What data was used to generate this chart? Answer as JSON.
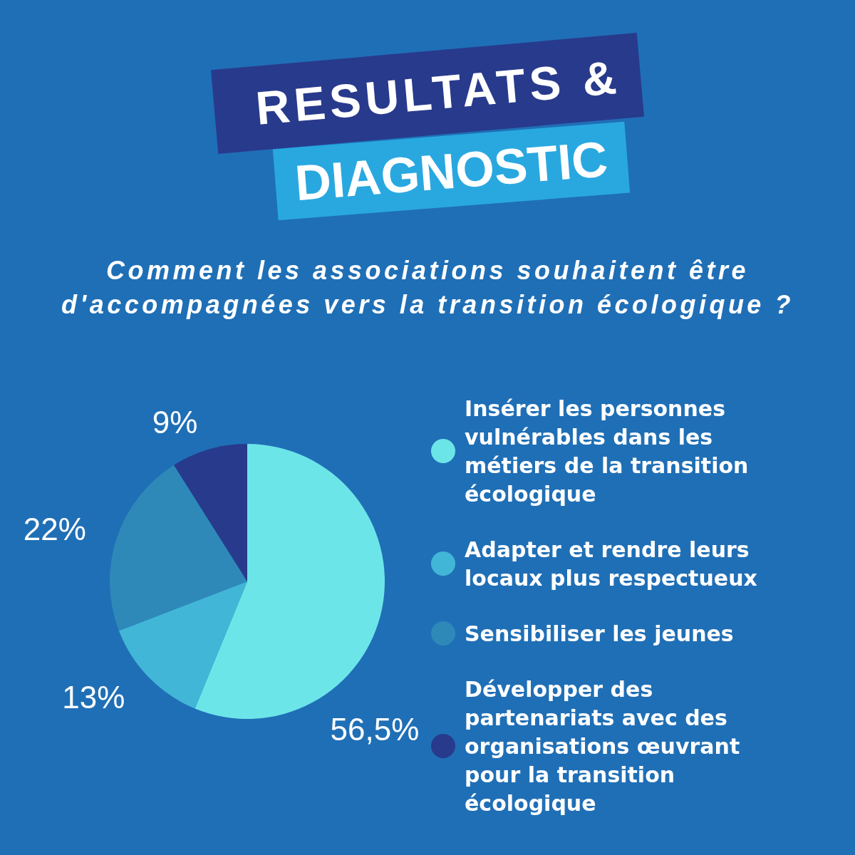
{
  "chart_data": {
    "type": "pie",
    "title": "RESULTATS & DIAGNOSTIC",
    "subtitle": "Comment les associations souhaitent être d'accompagnées vers la transition écologique ?",
    "categories": [
      "Insérer les personnes vulnérables dans les métiers de la transition écologique",
      "Adapter et rendre leurs locaux plus respectueux",
      "Sensibiliser les jeunes",
      "Développer des partenariats avec des organisations œuvrant pour la transition écologique"
    ],
    "values": [
      56.5,
      13,
      22,
      9
    ],
    "value_labels": [
      "56,5%",
      "13%",
      "22%",
      "9%"
    ],
    "colors": [
      "#6ce5e8",
      "#42b6d6",
      "#2e89b9",
      "#283a8c"
    ],
    "legend": "right"
  }
}
